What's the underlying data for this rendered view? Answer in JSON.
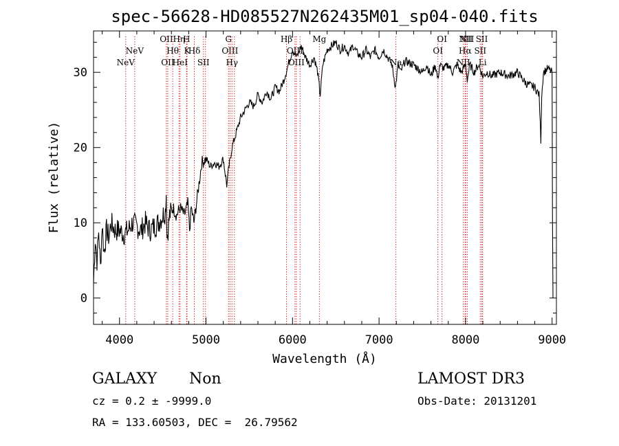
{
  "chart_data": {
    "type": "line",
    "title": "spec-56628-HD085527N262435M01_sp04-040.fits",
    "xlabel": "Wavelength (Å)",
    "ylabel": "Flux (relative)",
    "xlim": [
      3700,
      9050
    ],
    "ylim": [
      -3.5,
      35.5
    ],
    "x_ticks": [
      4000,
      5000,
      6000,
      7000,
      8000,
      9000
    ],
    "y_ticks": [
      0,
      10,
      20,
      30
    ],
    "x_tick_labels": [
      "4000",
      "5000",
      "6000",
      "7000",
      "8000",
      "9000"
    ],
    "y_tick_labels": [
      "0",
      "10",
      "20",
      "30"
    ],
    "series": [
      {
        "name": "spectrum",
        "anchors": [
          [
            3700,
            2
          ],
          [
            3720,
            8
          ],
          [
            3740,
            5
          ],
          [
            3760,
            9
          ],
          [
            3780,
            4
          ],
          [
            3800,
            10
          ],
          [
            3820,
            6
          ],
          [
            3850,
            9
          ],
          [
            3880,
            8
          ],
          [
            3900,
            10
          ],
          [
            3950,
            9
          ],
          [
            4000,
            9
          ],
          [
            4050,
            8.5
          ],
          [
            4100,
            9
          ],
          [
            4150,
            10
          ],
          [
            4200,
            9.5
          ],
          [
            4250,
            9
          ],
          [
            4300,
            10
          ],
          [
            4350,
            9
          ],
          [
            4400,
            9.5
          ],
          [
            4450,
            10
          ],
          [
            4500,
            11
          ],
          [
            4530,
            11.5
          ],
          [
            4540,
            14
          ],
          [
            4550,
            8
          ],
          [
            4580,
            11
          ],
          [
            4620,
            12
          ],
          [
            4660,
            11
          ],
          [
            4700,
            12
          ],
          [
            4750,
            11
          ],
          [
            4790,
            12.5
          ],
          [
            4810,
            9
          ],
          [
            4830,
            12
          ],
          [
            4860,
            10
          ],
          [
            4900,
            13.5
          ],
          [
            4950,
            18
          ],
          [
            5000,
            18.5
          ],
          [
            5050,
            17.5
          ],
          [
            5100,
            18
          ],
          [
            5150,
            17.5
          ],
          [
            5200,
            18.5
          ],
          [
            5240,
            15
          ],
          [
            5260,
            17
          ],
          [
            5300,
            20
          ],
          [
            5350,
            22
          ],
          [
            5400,
            24
          ],
          [
            5450,
            25
          ],
          [
            5500,
            26
          ],
          [
            5550,
            25.5
          ],
          [
            5600,
            27
          ],
          [
            5650,
            26
          ],
          [
            5700,
            27.5
          ],
          [
            5750,
            26.5
          ],
          [
            5800,
            28
          ],
          [
            5850,
            27.5
          ],
          [
            5900,
            29
          ],
          [
            5950,
            31
          ],
          [
            6000,
            33
          ],
          [
            6050,
            32
          ],
          [
            6100,
            33.5
          ],
          [
            6150,
            32
          ],
          [
            6200,
            31
          ],
          [
            6250,
            32
          ],
          [
            6290,
            30
          ],
          [
            6320,
            27
          ],
          [
            6350,
            31
          ],
          [
            6400,
            33
          ],
          [
            6450,
            33.5
          ],
          [
            6500,
            34
          ],
          [
            6550,
            33
          ],
          [
            6600,
            33.5
          ],
          [
            6650,
            32.5
          ],
          [
            6700,
            33.5
          ],
          [
            6750,
            32.5
          ],
          [
            6800,
            32
          ],
          [
            6850,
            33
          ],
          [
            6900,
            32
          ],
          [
            6950,
            33
          ],
          [
            7000,
            32
          ],
          [
            7050,
            33
          ],
          [
            7100,
            32
          ],
          [
            7150,
            31
          ],
          [
            7190,
            28
          ],
          [
            7220,
            31
          ],
          [
            7250,
            30
          ],
          [
            7300,
            31.5
          ],
          [
            7400,
            31
          ],
          [
            7500,
            30
          ],
          [
            7550,
            31
          ],
          [
            7600,
            29.5
          ],
          [
            7650,
            31
          ],
          [
            7680,
            29
          ],
          [
            7700,
            31
          ],
          [
            7750,
            30.5
          ],
          [
            7800,
            31
          ],
          [
            7850,
            30
          ],
          [
            7900,
            31
          ],
          [
            7950,
            30
          ],
          [
            8000,
            31
          ],
          [
            8020,
            29
          ],
          [
            8050,
            31
          ],
          [
            8100,
            30
          ],
          [
            8150,
            31
          ],
          [
            8200,
            29.5
          ],
          [
            8250,
            30
          ],
          [
            8300,
            29.5
          ],
          [
            8400,
            30
          ],
          [
            8500,
            29.5
          ],
          [
            8600,
            30
          ],
          [
            8700,
            28.5
          ],
          [
            8800,
            28
          ],
          [
            8850,
            27
          ],
          [
            8870,
            21
          ],
          [
            8880,
            27
          ],
          [
            8900,
            30
          ],
          [
            8950,
            30.5
          ],
          [
            9000,
            30
          ],
          [
            9005,
            10
          ],
          [
            9010,
            0
          ]
        ]
      }
    ],
    "lines": [
      {
        "wl": 4072,
        "label": "NeV",
        "row": 2
      },
      {
        "wl": 4176,
        "label": "NeV",
        "row": 1
      },
      {
        "wl": 4542,
        "label": "OII",
        "row": 0
      },
      {
        "wl": 4558,
        "label": "OII",
        "row": 2
      },
      {
        "wl": 4615,
        "label": "Hθ",
        "row": 1
      },
      {
        "wl": 4688,
        "label": "Hη",
        "row": 0
      },
      {
        "wl": 4700,
        "label": "HeI",
        "row": 2
      },
      {
        "wl": 4776,
        "label": "H",
        "row": 0
      },
      {
        "wl": 4781,
        "label": "K",
        "row": 1
      },
      {
        "wl": 4865,
        "label": "Hδ",
        "row": 1
      },
      {
        "wl": 4970,
        "label": "SII",
        "row": 2
      },
      {
        "wl": 4994,
        "label": "",
        "row": 0
      },
      {
        "wl": 5260,
        "label": "G",
        "row": 0
      },
      {
        "wl": 5277,
        "label": "OIII",
        "row": 1
      },
      {
        "wl": 5300,
        "label": "Hγ",
        "row": 2
      },
      {
        "wl": 5328,
        "label": "",
        "row": 0
      },
      {
        "wl": 5930,
        "label": "Hβ",
        "row": 0
      },
      {
        "wl": 6028,
        "label": "OIII",
        "row": 1
      },
      {
        "wl": 6044,
        "label": "OIII",
        "row": 2
      },
      {
        "wl": 6087,
        "label": "",
        "row": 0
      },
      {
        "wl": 6310,
        "label": "Mg",
        "row": 0
      },
      {
        "wl": 7195,
        "label": "Na",
        "row": 2
      },
      {
        "wl": 7680,
        "label": "OI",
        "row": 1
      },
      {
        "wl": 7728,
        "label": "OI",
        "row": 0
      },
      {
        "wl": 7975,
        "label": "NII",
        "row": 2
      },
      {
        "wl": 7995,
        "label": "Hα",
        "row": 1
      },
      {
        "wl": 8002,
        "label": "NII",
        "row": 0
      },
      {
        "wl": 8020,
        "label": "NII",
        "row": 0
      },
      {
        "wl": 8170,
        "label": "SII",
        "row": 1
      },
      {
        "wl": 8188,
        "label": "SII",
        "row": 0
      },
      {
        "wl": 8197,
        "label": "Li",
        "row": 2
      }
    ]
  },
  "footer": {
    "object_class": "GALAXY",
    "subclass": "Non",
    "survey": "LAMOST DR3",
    "cz": "cz = 0.2 ± -9999.0",
    "obs_date": "Obs-Date: 20131201",
    "coords": "RA = 133.60503, DEC =  26.79562"
  }
}
